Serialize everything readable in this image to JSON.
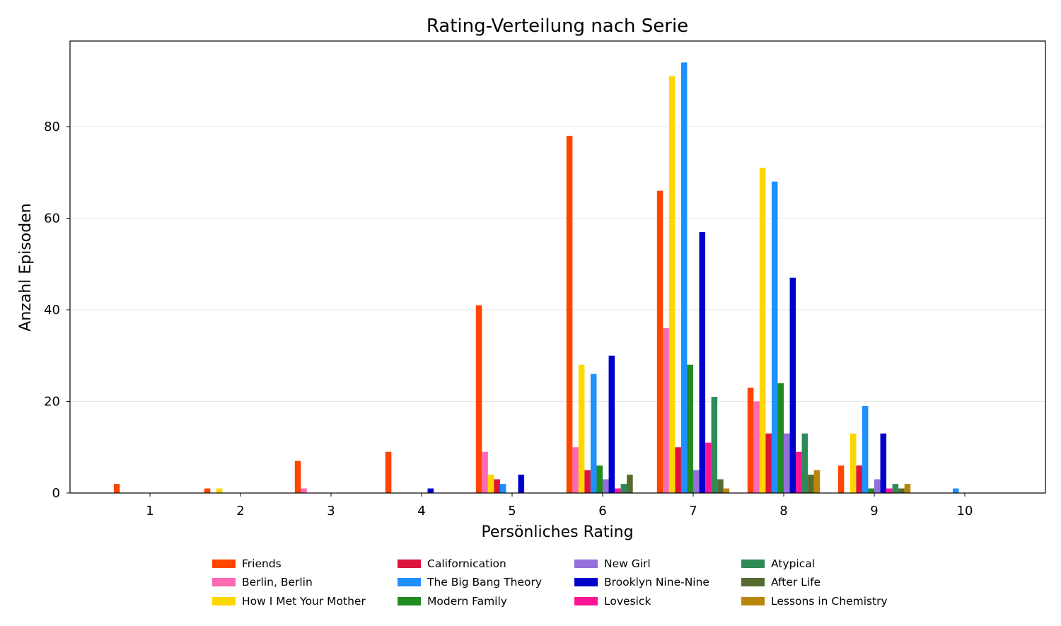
{
  "chart_data": {
    "type": "bar",
    "title": "Rating-Verteilung nach Serie",
    "xlabel": "Persönliches Rating",
    "ylabel": "Anzahl Episoden",
    "categories": [
      "1",
      "2",
      "3",
      "4",
      "5",
      "6",
      "7",
      "8",
      "9",
      "10"
    ],
    "ylim": [
      0,
      98
    ],
    "yticks": [
      "0",
      "20",
      "40",
      "60",
      "80"
    ],
    "grid": "y",
    "legend_position": "bottom",
    "series": [
      {
        "name": "Friends",
        "color": "#ff4500",
        "values": [
          2,
          1,
          7,
          9,
          41,
          78,
          66,
          23,
          6,
          0
        ]
      },
      {
        "name": "Berlin, Berlin",
        "color": "#ff69b4",
        "values": [
          0,
          0,
          1,
          0,
          9,
          10,
          36,
          20,
          0,
          0
        ]
      },
      {
        "name": "How I Met Your Mother",
        "color": "#ffd700",
        "values": [
          0,
          1,
          0,
          0,
          4,
          28,
          91,
          71,
          13,
          0
        ]
      },
      {
        "name": "Californication",
        "color": "#dc143c",
        "values": [
          0,
          0,
          0,
          0,
          3,
          5,
          10,
          13,
          6,
          0
        ]
      },
      {
        "name": "The Big Bang Theory",
        "color": "#1e90ff",
        "values": [
          0,
          0,
          0,
          0,
          2,
          26,
          94,
          68,
          19,
          1
        ]
      },
      {
        "name": "Modern Family",
        "color": "#228b22",
        "values": [
          0,
          0,
          0,
          0,
          0,
          6,
          28,
          24,
          1,
          0
        ]
      },
      {
        "name": "New Girl",
        "color": "#9370db",
        "values": [
          0,
          0,
          0,
          0,
          0,
          3,
          5,
          13,
          3,
          0
        ]
      },
      {
        "name": "Brooklyn Nine-Nine",
        "color": "#0000cd",
        "values": [
          0,
          0,
          0,
          1,
          4,
          30,
          57,
          47,
          13,
          0
        ]
      },
      {
        "name": "Lovesick",
        "color": "#ff1493",
        "values": [
          0,
          0,
          0,
          0,
          0,
          1,
          11,
          9,
          1,
          0
        ]
      },
      {
        "name": "Atypical",
        "color": "#2e8b57",
        "values": [
          0,
          0,
          0,
          0,
          0,
          2,
          21,
          13,
          2,
          0
        ]
      },
      {
        "name": "After Life",
        "color": "#556b2f",
        "values": [
          0,
          0,
          0,
          0,
          0,
          4,
          3,
          4,
          1,
          0
        ]
      },
      {
        "name": "Lessons in Chemistry",
        "color": "#b8860b",
        "values": [
          0,
          0,
          0,
          0,
          0,
          0,
          1,
          5,
          2,
          0
        ]
      }
    ]
  }
}
